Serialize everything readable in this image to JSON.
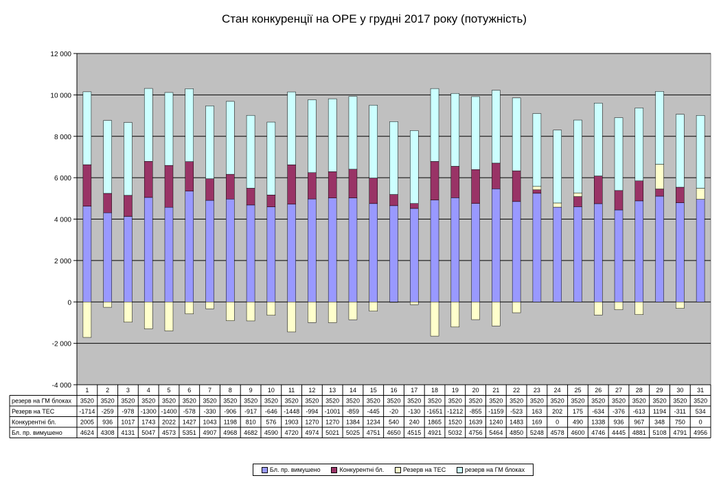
{
  "chart_data": {
    "type": "bar",
    "title": "Стан конкуренції на ОРЕ  у грудні 2017 року (потужність)",
    "stacked": true,
    "ylim": [
      -4000,
      12000
    ],
    "yticks": [
      -4000,
      -2000,
      0,
      2000,
      4000,
      6000,
      8000,
      10000,
      12000
    ],
    "ytick_labels": [
      "-4 000",
      "-2 000",
      "0",
      "2 000",
      "4 000",
      "6 000",
      "8 000",
      "10 000",
      "12 000"
    ],
    "grid": "horizontal",
    "legend_position": "bottom",
    "categories": [
      "1",
      "2",
      "3",
      "4",
      "5",
      "6",
      "7",
      "8",
      "9",
      "10",
      "11",
      "12",
      "13",
      "14",
      "15",
      "16",
      "17",
      "18",
      "19",
      "20",
      "21",
      "22",
      "23",
      "24",
      "25",
      "26",
      "27",
      "28",
      "29",
      "30",
      "31"
    ],
    "series": [
      {
        "name": "Бл. пр. вимушено",
        "color": "#9999ff",
        "values": [
          4624,
          4308,
          4131,
          5047,
          4573,
          5351,
          4907,
          4968,
          4682,
          4590,
          4720,
          4974,
          5021,
          5025,
          4751,
          4650,
          4515,
          4921,
          5032,
          4756,
          5464,
          4850,
          5248,
          4578,
          4600,
          4746,
          4445,
          4881,
          5108,
          4791,
          4956
        ]
      },
      {
        "name": "Конкурентні бл.",
        "color": "#993366",
        "values": [
          2005,
          936,
          1017,
          1743,
          2022,
          1427,
          1043,
          1198,
          810,
          576,
          1903,
          1270,
          1270,
          1384,
          1234,
          540,
          240,
          1865,
          1520,
          1639,
          1240,
          1483,
          169,
          0,
          490,
          1338,
          936,
          967,
          348,
          750,
          0
        ]
      },
      {
        "name": "Резерв на ТЕС",
        "color": "#ffffcc",
        "values": [
          -1714,
          -259,
          -978,
          -1300,
          -1400,
          -578,
          -330,
          -906,
          -917,
          -646,
          -1448,
          -994,
          -1001,
          -859,
          -445,
          -20,
          -130,
          -1651,
          -1212,
          -855,
          -1159,
          -523,
          163,
          202,
          175,
          -634,
          -376,
          -613,
          1194,
          -311,
          534
        ]
      },
      {
        "name": "резерв на ГМ блоках",
        "color": "#ccffff",
        "values": [
          3520,
          3520,
          3520,
          3520,
          3520,
          3520,
          3520,
          3520,
          3520,
          3520,
          3520,
          3520,
          3520,
          3520,
          3520,
          3520,
          3520,
          3520,
          3520,
          3520,
          3520,
          3520,
          3520,
          3520,
          3520,
          3520,
          3520,
          3520,
          3520,
          3520,
          3520
        ]
      }
    ],
    "table_row_order": [
      "резерв на ГМ блоках",
      "Резерв на ТЕС",
      "Конкурентні бл.",
      "Бл. пр. вимушено"
    ],
    "colors": {
      "plot_background": "#c0c0c0",
      "outline": "#000000"
    }
  }
}
